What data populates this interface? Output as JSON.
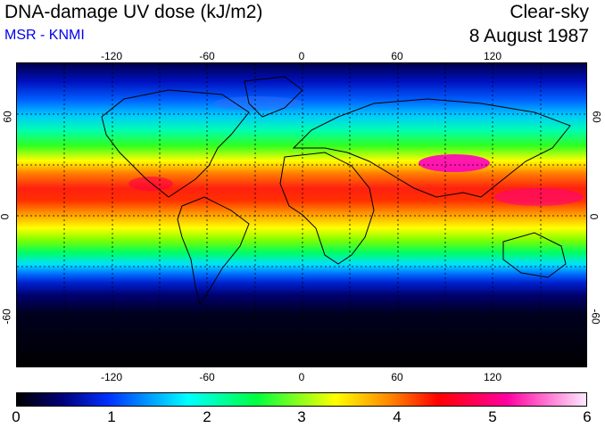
{
  "header": {
    "title": "DNA-damage UV dose (kJ/m2)",
    "source": "MSR - KNMI",
    "sky_condition": "Clear-sky",
    "date": "8 August 1987"
  },
  "map": {
    "longitude_ticks": [
      "-120",
      "-60",
      "0",
      "60",
      "120"
    ],
    "latitude_ticks_left": [
      "60",
      "0",
      "-60"
    ],
    "latitude_ticks_right": [
      "60",
      "0",
      "-60"
    ],
    "projection": "equirectangular",
    "gridlines": "dotted every 30 degrees",
    "colors": {
      "low": "#000000",
      "mid_low": "#0030ff",
      "mid": "#00ff80",
      "mid_high": "#ffff00",
      "high": "#ff0000",
      "max": "#ff00ff"
    }
  },
  "colorbar": {
    "labels": [
      "0",
      "1",
      "2",
      "3",
      "4",
      "5",
      "6"
    ],
    "range": [
      0,
      6
    ],
    "unit": "kJ/m2"
  }
}
